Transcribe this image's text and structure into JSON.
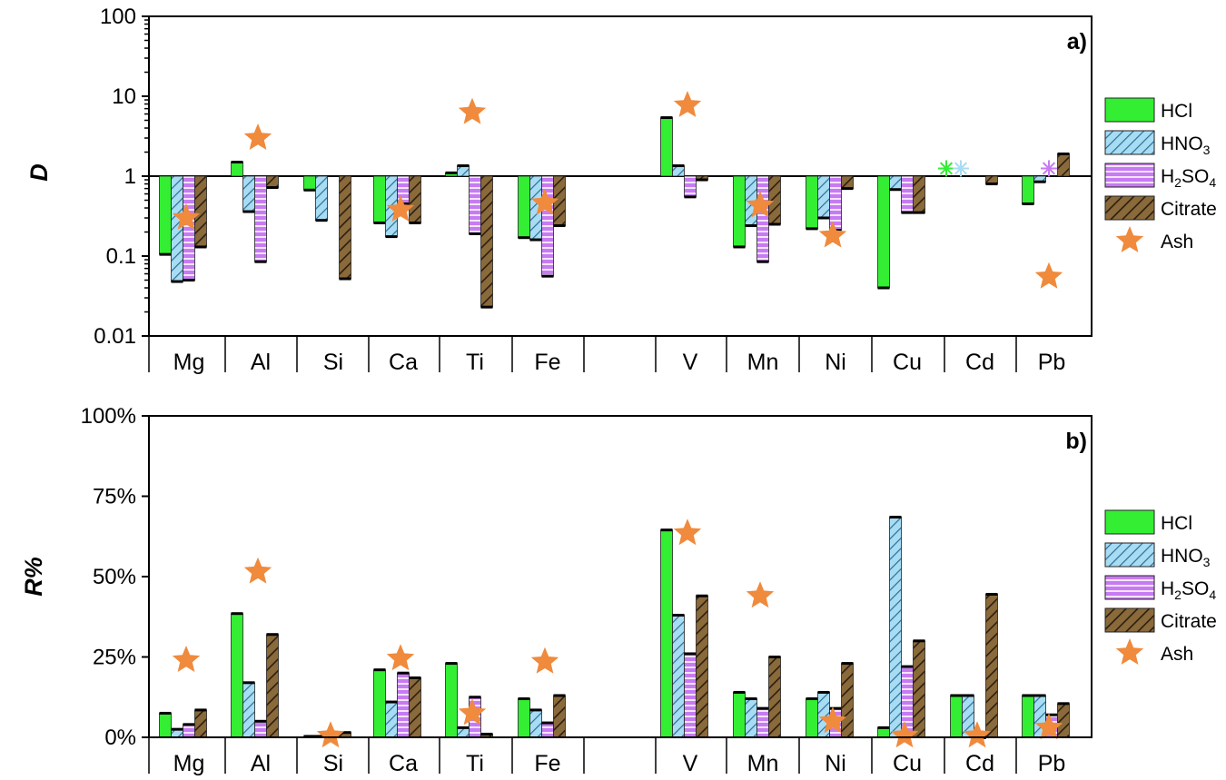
{
  "chart_data": [
    {
      "type": "bar",
      "panel_label": "a)",
      "ylabel": "D",
      "yscale": "log",
      "ylim": [
        0.01,
        100
      ],
      "yticks": [
        "0.01",
        "0.1",
        "1",
        "10",
        "100"
      ],
      "categories": [
        "Mg",
        "Al",
        "Si",
        "Ca",
        "Ti",
        "Fe",
        "V",
        "Mn",
        "Ni",
        "Cu",
        "Cd",
        "Pb"
      ],
      "series": [
        {
          "name": "HCl",
          "color": "#33ee33",
          "values": [
            0.105,
            1.5,
            0.67,
            0.26,
            1.1,
            0.17,
            5.4,
            0.13,
            0.22,
            0.04,
            1.25,
            0.45
          ]
        },
        {
          "name": "HNO3",
          "color": "#a8dcf2",
          "values": [
            0.048,
            0.36,
            0.28,
            0.175,
            1.35,
            0.16,
            1.35,
            0.24,
            0.3,
            0.68,
            1.25,
            0.85
          ]
        },
        {
          "name": "H2SO4",
          "color": "#c77bf2",
          "values": [
            0.05,
            0.085,
            null,
            0.45,
            0.19,
            0.056,
            0.55,
            0.085,
            0.21,
            0.35,
            null,
            1.25
          ]
        },
        {
          "name": "Citrate",
          "color": "#8a6a3a",
          "values": [
            0.13,
            0.72,
            0.052,
            0.26,
            0.023,
            0.24,
            0.9,
            0.25,
            0.7,
            0.35,
            0.8,
            1.9
          ]
        },
        {
          "name": "Ash",
          "color": "#f08a3c",
          "values": [
            0.3,
            3.0,
            null,
            0.38,
            6.3,
            0.46,
            7.7,
            0.43,
            0.18,
            null,
            null,
            0.055
          ]
        }
      ],
      "legend": [
        "HCl",
        "HNO3",
        "H2SO4",
        "Citrate",
        "Ash"
      ]
    },
    {
      "type": "bar",
      "panel_label": "b)",
      "ylabel": "R%",
      "ylim": [
        0,
        100
      ],
      "yticks": [
        "0%",
        "25%",
        "50%",
        "75%",
        "100%"
      ],
      "categories": [
        "Mg",
        "Al",
        "Si",
        "Ca",
        "Ti",
        "Fe",
        "V",
        "Mn",
        "Ni",
        "Cu",
        "Cd",
        "Pb"
      ],
      "series": [
        {
          "name": "HCl",
          "color": "#33ee33",
          "values": [
            7.5,
            38.5,
            0.3,
            21,
            23,
            12,
            64.5,
            14,
            12,
            3,
            13,
            13
          ]
        },
        {
          "name": "HNO3",
          "color": "#a8dcf2",
          "values": [
            2.5,
            17,
            0.3,
            11,
            3,
            8.5,
            38,
            12,
            14,
            68.5,
            13,
            13
          ]
        },
        {
          "name": "H2SO4",
          "color": "#c77bf2",
          "values": [
            4,
            5,
            0.3,
            20,
            12.5,
            4.5,
            26,
            9,
            9,
            22,
            0,
            7
          ]
        },
        {
          "name": "Citrate",
          "color": "#8a6a3a",
          "values": [
            8.5,
            32,
            1.5,
            18.5,
            1,
            13,
            44,
            25,
            23,
            30,
            44.5,
            10.5
          ]
        },
        {
          "name": "Ash",
          "color": "#f08a3c",
          "values": [
            24,
            51.5,
            0.5,
            24.5,
            7.5,
            23.5,
            63.5,
            44,
            5,
            0.5,
            0.5,
            3
          ]
        }
      ],
      "legend": [
        "HCl",
        "HNO3",
        "H2SO4",
        "Citrate",
        "Ash"
      ]
    }
  ]
}
